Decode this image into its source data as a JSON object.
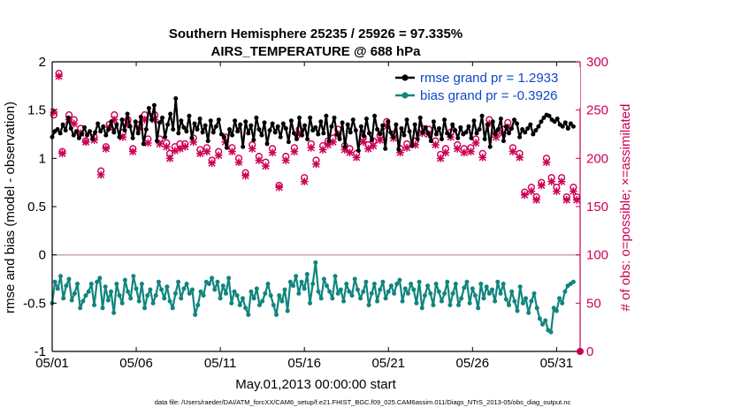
{
  "chart_data": {
    "type": "line",
    "title": "Southern Hemisphere 25235 / 25926 = 97.335%",
    "subtitle": "AIRS_TEMPERATURE @ 688 hPa",
    "xlabel": "May.01,2013 00:00:00 start",
    "ylabel": "rmse and bias (model - observation)",
    "ylabel_right": "# of obs: o=possible; ×=assimilated",
    "xlim": [
      0,
      31.4
    ],
    "ylim": [
      -1,
      2
    ],
    "ylim_right": [
      0,
      300
    ],
    "x_ticks": [
      0,
      5,
      10,
      15,
      20,
      25,
      30
    ],
    "x_tick_labels": [
      "05/01",
      "05/06",
      "05/11",
      "05/16",
      "05/21",
      "05/26",
      "05/31"
    ],
    "y_ticks": [
      -1,
      -0.5,
      0,
      0.5,
      1,
      1.5,
      2
    ],
    "y_tick_labels": [
      "-1",
      "-0.5",
      "0",
      "0.5",
      "1",
      "1.5",
      "2"
    ],
    "y_right_ticks": [
      0,
      50,
      100,
      150,
      200,
      250,
      300
    ],
    "y_right_tick_labels": [
      "0",
      "50",
      "100",
      "150",
      "200",
      "250",
      "300"
    ],
    "legend_position": "top-right",
    "footnote": "data file: /Users/raeder/DAI/ATM_forcXX/CAM6_setup/f.e21.FHIST_BGC.f09_025.CAM6assim.011/Diags_NTrS_2013-05/obs_diag_output.nc",
    "series": [
      {
        "name": "rmse grand pr = 1.2933",
        "axis": "left",
        "color": "#000000",
        "marker": "circle",
        "values": [
          1.22,
          1.28,
          1.3,
          1.26,
          1.35,
          1.29,
          1.42,
          1.31,
          1.24,
          1.28,
          1.21,
          1.25,
          1.32,
          1.24,
          1.28,
          1.2,
          1.27,
          1.36,
          1.28,
          1.33,
          1.24,
          1.3,
          1.38,
          1.27,
          1.35,
          1.22,
          1.4,
          1.29,
          1.46,
          1.33,
          1.21,
          1.38,
          1.26,
          1.43,
          1.15,
          1.3,
          1.52,
          1.4,
          1.55,
          1.18,
          1.37,
          1.42,
          1.22,
          1.35,
          1.46,
          1.3,
          1.62,
          1.26,
          1.39,
          1.32,
          1.28,
          1.44,
          1.21,
          1.36,
          1.3,
          1.41,
          1.27,
          1.34,
          1.18,
          1.39,
          1.27,
          1.33,
          1.4,
          1.25,
          1.22,
          1.11,
          1.3,
          1.24,
          1.39,
          1.28,
          1.35,
          1.12,
          1.38,
          1.26,
          1.34,
          1.19,
          1.42,
          1.3,
          1.24,
          1.37,
          1.15,
          1.29,
          1.36,
          1.27,
          1.33,
          1.22,
          1.36,
          1.31,
          1.17,
          1.39,
          1.26,
          1.2,
          1.42,
          1.24,
          1.34,
          1.2,
          1.42,
          1.29,
          1.32,
          1.25,
          1.38,
          1.26,
          1.44,
          1.18,
          1.33,
          1.42,
          1.25,
          1.2,
          1.37,
          1.12,
          1.35,
          1.27,
          1.4,
          1.29,
          1.08,
          1.33,
          1.23,
          1.41,
          1.26,
          1.19,
          1.44,
          1.3,
          1.25,
          1.34,
          1.1,
          1.38,
          1.27,
          1.22,
          1.35,
          1.09,
          1.31,
          1.24,
          1.4,
          1.28,
          1.13,
          1.35,
          1.2,
          1.42,
          1.27,
          1.32,
          1.26,
          1.18,
          1.38,
          1.25,
          1.31,
          1.2,
          1.4,
          1.26,
          1.23,
          1.35,
          1.29,
          1.21,
          1.32,
          1.25,
          1.27,
          1.33,
          1.21,
          1.39,
          1.26,
          1.3,
          1.44,
          1.2,
          1.35,
          1.12,
          1.38,
          1.25,
          1.3,
          1.41,
          1.18,
          1.33,
          1.26,
          1.31,
          1.4,
          1.36,
          1.22,
          1.3,
          1.27,
          1.31,
          1.35,
          1.25,
          1.29,
          1.33,
          1.38,
          1.42,
          1.45,
          1.44,
          1.4,
          1.38,
          1.41,
          1.35,
          1.33,
          1.37,
          1.31,
          1.36,
          1.33
        ]
      },
      {
        "name": "bias grand pr = -0.3926",
        "axis": "left",
        "color": "#10857d",
        "marker": "circle",
        "values": [
          -0.5,
          -0.28,
          -0.35,
          -0.22,
          -0.45,
          -0.32,
          -0.25,
          -0.47,
          -0.4,
          -0.3,
          -0.55,
          -0.48,
          -0.42,
          -0.38,
          -0.3,
          -0.52,
          -0.28,
          -0.24,
          -0.55,
          -0.33,
          -0.47,
          -0.38,
          -0.6,
          -0.3,
          -0.42,
          -0.5,
          -0.26,
          -0.38,
          -0.45,
          -0.22,
          -0.35,
          -0.48,
          -0.3,
          -0.55,
          -0.42,
          -0.36,
          -0.5,
          -0.42,
          -0.28,
          -0.36,
          -0.45,
          -0.33,
          -0.48,
          -0.55,
          -0.4,
          -0.28,
          -0.45,
          -0.35,
          -0.3,
          -0.4,
          -0.36,
          -0.62,
          -0.52,
          -0.38,
          -0.42,
          -0.28,
          -0.3,
          -0.24,
          -0.36,
          -0.28,
          -0.45,
          -0.32,
          -0.4,
          -0.24,
          -0.5,
          -0.38,
          -0.42,
          -0.52,
          -0.45,
          -0.55,
          -0.62,
          -0.38,
          -0.45,
          -0.35,
          -0.52,
          -0.48,
          -0.4,
          -0.3,
          -0.42,
          -0.52,
          -0.62,
          -0.42,
          -0.48,
          -0.36,
          -0.58,
          -0.28,
          -0.32,
          -0.22,
          -0.4,
          -0.28,
          -0.35,
          -0.2,
          -0.5,
          -0.3,
          -0.08,
          -0.38,
          -0.45,
          -0.25,
          -0.32,
          -0.38,
          -0.45,
          -0.22,
          -0.4,
          -0.36,
          -0.48,
          -0.3,
          -0.38,
          -0.42,
          -0.25,
          -0.36,
          -0.45,
          -0.38,
          -0.28,
          -0.52,
          -0.4,
          -0.3,
          -0.48,
          -0.36,
          -0.28,
          -0.45,
          -0.38,
          -0.32,
          -0.4,
          -0.3,
          -0.26,
          -0.48,
          -0.35,
          -0.4,
          -0.3,
          -0.36,
          -0.5,
          -0.28,
          -0.55,
          -0.42,
          -0.32,
          -0.4,
          -0.52,
          -0.3,
          -0.38,
          -0.48,
          -0.4,
          -0.28,
          -0.52,
          -0.4,
          -0.3,
          -0.52,
          -0.45,
          -0.34,
          -0.28,
          -0.5,
          -0.35,
          -0.42,
          -0.55,
          -0.3,
          -0.45,
          -0.33,
          -0.4,
          -0.36,
          -0.48,
          -0.28,
          -0.4,
          -0.3,
          -0.46,
          -0.52,
          -0.38,
          -0.48,
          -0.58,
          -0.33,
          -0.5,
          -0.45,
          -0.6,
          -0.48,
          -0.4,
          -0.55,
          -0.66,
          -0.72,
          -0.68,
          -0.78,
          -0.8,
          -0.55,
          -0.58,
          -0.45,
          -0.5,
          -0.38,
          -0.32,
          -0.3,
          -0.28
        ]
      },
      {
        "name": "obs possible",
        "axis": "right",
        "color": "#cc0055",
        "marker": "o",
        "points": [
          [
            0.1,
            245
          ],
          [
            0.4,
            288
          ],
          [
            0.6,
            207
          ],
          [
            1.0,
            245
          ],
          [
            1.3,
            240
          ],
          [
            1.7,
            231
          ],
          [
            2.0,
            218
          ],
          [
            2.5,
            222
          ],
          [
            2.9,
            187
          ],
          [
            3.2,
            212
          ],
          [
            3.4,
            235
          ],
          [
            3.7,
            245
          ],
          [
            4.2,
            227
          ],
          [
            4.5,
            240
          ],
          [
            4.8,
            210
          ],
          [
            5.2,
            235
          ],
          [
            5.5,
            245
          ],
          [
            5.7,
            220
          ],
          [
            6.1,
            245
          ],
          [
            6.4,
            220
          ],
          [
            6.8,
            216
          ],
          [
            7.0,
            205
          ],
          [
            7.3,
            212
          ],
          [
            7.6,
            215
          ],
          [
            7.9,
            215
          ],
          [
            8.4,
            221
          ],
          [
            8.8,
            209
          ],
          [
            9.2,
            211
          ],
          [
            9.5,
            198
          ],
          [
            9.9,
            207
          ],
          [
            10.3,
            222
          ],
          [
            10.7,
            211
          ],
          [
            11.1,
            200
          ],
          [
            11.5,
            185
          ],
          [
            11.9,
            214
          ],
          [
            12.3,
            202
          ],
          [
            12.7,
            196
          ],
          [
            13.1,
            210
          ],
          [
            13.5,
            172
          ],
          [
            13.9,
            202
          ],
          [
            14.4,
            211
          ],
          [
            14.7,
            230
          ],
          [
            15.0,
            180
          ],
          [
            15.4,
            215
          ],
          [
            15.7,
            198
          ],
          [
            16.1,
            213
          ],
          [
            16.4,
            218
          ],
          [
            16.7,
            221
          ],
          [
            17.0,
            230
          ],
          [
            17.4,
            213
          ],
          [
            17.7,
            210
          ],
          [
            18.1,
            205
          ],
          [
            18.5,
            222
          ],
          [
            18.8,
            214
          ],
          [
            19.1,
            218
          ],
          [
            19.5,
            224
          ],
          [
            19.9,
            238
          ],
          [
            20.3,
            225
          ],
          [
            20.7,
            210
          ],
          [
            21.1,
            215
          ],
          [
            21.6,
            218
          ],
          [
            22.0,
            231
          ],
          [
            22.4,
            230
          ],
          [
            22.8,
            218
          ],
          [
            23.1,
            204
          ],
          [
            23.4,
            210
          ],
          [
            23.7,
            227
          ],
          [
            24.1,
            214
          ],
          [
            24.5,
            210
          ],
          [
            24.9,
            211
          ],
          [
            25.2,
            220
          ],
          [
            25.6,
            205
          ],
          [
            26.0,
            240
          ],
          [
            26.4,
            226
          ],
          [
            26.8,
            230
          ],
          [
            27.1,
            237
          ],
          [
            27.4,
            211
          ],
          [
            27.8,
            205
          ],
          [
            28.1,
            165
          ],
          [
            28.5,
            170
          ],
          [
            28.8,
            160
          ],
          [
            29.1,
            175
          ],
          [
            29.4,
            200
          ],
          [
            29.7,
            180
          ],
          [
            30.0,
            170
          ],
          [
            30.3,
            180
          ],
          [
            30.6,
            160
          ],
          [
            31.0,
            170
          ],
          [
            31.2,
            160
          ]
        ]
      },
      {
        "name": "obs assimilated",
        "axis": "right",
        "color": "#cc0055",
        "marker": "x",
        "points": [
          [
            0.1,
            248
          ],
          [
            0.4,
            285
          ],
          [
            0.6,
            205
          ],
          [
            1.0,
            240
          ],
          [
            1.3,
            236
          ],
          [
            1.7,
            226
          ],
          [
            2.0,
            217
          ],
          [
            2.5,
            219
          ],
          [
            2.9,
            183
          ],
          [
            3.2,
            210
          ],
          [
            3.4,
            232
          ],
          [
            3.7,
            240
          ],
          [
            4.2,
            222
          ],
          [
            4.5,
            235
          ],
          [
            4.8,
            207
          ],
          [
            5.2,
            231
          ],
          [
            5.5,
            240
          ],
          [
            5.7,
            216
          ],
          [
            6.1,
            240
          ],
          [
            6.4,
            215
          ],
          [
            6.8,
            212
          ],
          [
            7.0,
            200
          ],
          [
            7.3,
            208
          ],
          [
            7.6,
            210
          ],
          [
            7.9,
            212
          ],
          [
            8.4,
            217
          ],
          [
            8.8,
            205
          ],
          [
            9.2,
            207
          ],
          [
            9.5,
            195
          ],
          [
            9.9,
            203
          ],
          [
            10.3,
            217
          ],
          [
            10.7,
            207
          ],
          [
            11.1,
            196
          ],
          [
            11.5,
            182
          ],
          [
            11.9,
            210
          ],
          [
            12.3,
            198
          ],
          [
            12.7,
            192
          ],
          [
            13.1,
            206
          ],
          [
            13.5,
            170
          ],
          [
            13.9,
            198
          ],
          [
            14.4,
            207
          ],
          [
            14.7,
            225
          ],
          [
            15.0,
            176
          ],
          [
            15.4,
            211
          ],
          [
            15.7,
            194
          ],
          [
            16.1,
            209
          ],
          [
            16.4,
            214
          ],
          [
            16.7,
            217
          ],
          [
            17.0,
            225
          ],
          [
            17.4,
            209
          ],
          [
            17.7,
            206
          ],
          [
            18.1,
            201
          ],
          [
            18.5,
            217
          ],
          [
            18.8,
            210
          ],
          [
            19.1,
            213
          ],
          [
            19.5,
            219
          ],
          [
            19.9,
            233
          ],
          [
            20.3,
            221
          ],
          [
            20.7,
            206
          ],
          [
            21.1,
            211
          ],
          [
            21.6,
            214
          ],
          [
            22.0,
            226
          ],
          [
            22.4,
            225
          ],
          [
            22.8,
            214
          ],
          [
            23.1,
            200
          ],
          [
            23.4,
            206
          ],
          [
            23.7,
            222
          ],
          [
            24.1,
            210
          ],
          [
            24.5,
            206
          ],
          [
            24.9,
            207
          ],
          [
            25.2,
            216
          ],
          [
            25.6,
            201
          ],
          [
            26.0,
            236
          ],
          [
            26.4,
            222
          ],
          [
            26.8,
            226
          ],
          [
            27.1,
            232
          ],
          [
            27.4,
            207
          ],
          [
            27.8,
            201
          ],
          [
            28.1,
            162
          ],
          [
            28.5,
            166
          ],
          [
            28.8,
            157
          ],
          [
            29.1,
            172
          ],
          [
            29.4,
            196
          ],
          [
            29.7,
            176
          ],
          [
            30.0,
            166
          ],
          [
            30.3,
            176
          ],
          [
            30.6,
            157
          ],
          [
            31.0,
            166
          ],
          [
            31.2,
            157
          ]
        ]
      }
    ]
  }
}
